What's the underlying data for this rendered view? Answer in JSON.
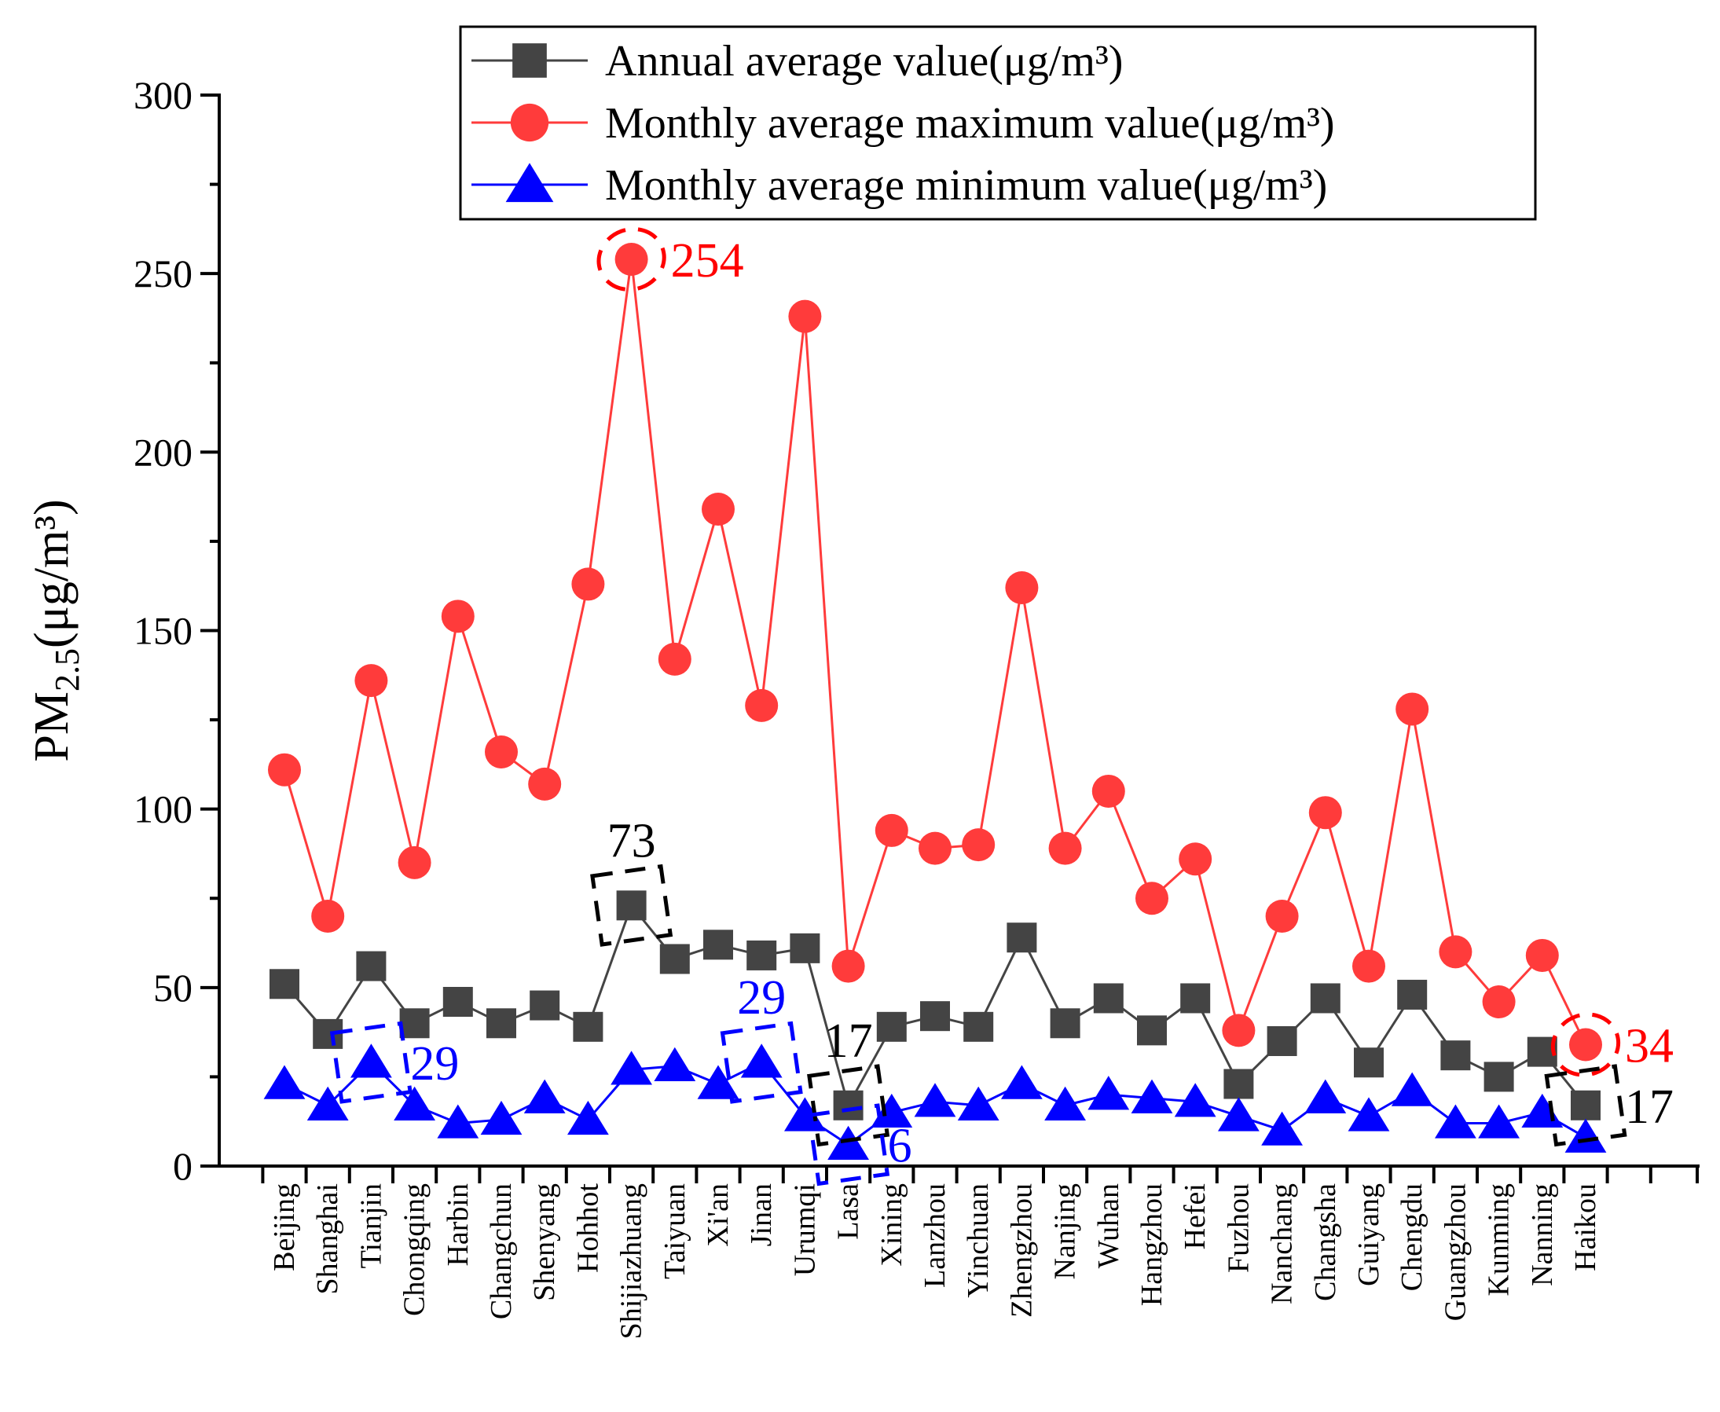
{
  "chart_data": {
    "type": "line",
    "title": "",
    "xlabel": "",
    "ylabel": {
      "main": "PM",
      "sub": "2.5",
      "unit": "(μg/m³)"
    },
    "ylim": [
      0,
      300
    ],
    "yticks": [
      "0",
      "50",
      "100",
      "150",
      "200",
      "250",
      "300"
    ],
    "grid": false,
    "legend_position": "top-right",
    "categories": [
      "Beijing",
      "Shanghai",
      "Tianjin",
      "Chongqing",
      "Harbin",
      "Changchun",
      "Shenyang",
      "Hohhot",
      "Shijiazhuang",
      "Taiyuan",
      "Xi'an",
      "Jinan",
      "Urumqi",
      "Lasa",
      "Xining",
      "Lanzhou",
      "Yinchuan",
      "Zhengzhou",
      "Nanjing",
      "Wuhan",
      "Hangzhou",
      "Hefei",
      "Fuzhou",
      "Nanchang",
      "Changsha",
      "Guiyang",
      "Chengdu",
      "Guangzhou",
      "Kunming",
      "Nanning",
      "Haikou"
    ],
    "series": [
      {
        "name": "Annual average value(μg/m³)",
        "color": "#444444",
        "marker": "square",
        "values": [
          51,
          37,
          56,
          40,
          46,
          40,
          45,
          39,
          73,
          58,
          62,
          59,
          61,
          17,
          39,
          42,
          39,
          64,
          40,
          47,
          38,
          47,
          23,
          35,
          47,
          29,
          48,
          31,
          25,
          32,
          17
        ]
      },
      {
        "name": "Monthly average maximum value(μg/m³)",
        "color": "#ff3b3b",
        "marker": "circle",
        "values": [
          111,
          70,
          136,
          85,
          154,
          116,
          107,
          163,
          254,
          142,
          184,
          129,
          238,
          56,
          94,
          89,
          90,
          162,
          89,
          105,
          75,
          86,
          38,
          70,
          99,
          56,
          128,
          60,
          46,
          59,
          34
        ]
      },
      {
        "name": "Monthly average minimum value(μg/m³)",
        "color": "#0000ff",
        "marker": "triangle",
        "values": [
          23,
          17,
          29,
          17,
          12,
          13,
          19,
          13,
          27,
          28,
          23,
          29,
          14,
          6,
          15,
          18,
          17,
          23,
          17,
          20,
          19,
          18,
          14,
          10,
          19,
          14,
          21,
          12,
          12,
          15,
          8
        ]
      }
    ],
    "annotations": [
      {
        "text": "254",
        "series": 1,
        "index": 8,
        "color": "#ff0000",
        "offset": "right"
      },
      {
        "text": "34",
        "series": 1,
        "index": 30,
        "color": "#ff0000",
        "offset": "right"
      },
      {
        "text": "73",
        "series": 0,
        "index": 8,
        "color": "#000000",
        "offset": "above"
      },
      {
        "text": "17",
        "series": 0,
        "index": 13,
        "color": "#000000",
        "offset": "above"
      },
      {
        "text": "17",
        "series": 0,
        "index": 30,
        "color": "#000000",
        "offset": "right"
      },
      {
        "text": "29",
        "series": 2,
        "index": 2,
        "color": "#0000ff",
        "offset": "right"
      },
      {
        "text": "29",
        "series": 2,
        "index": 11,
        "color": "#0000ff",
        "offset": "above"
      },
      {
        "text": "6",
        "series": 2,
        "index": 13,
        "color": "#0000ff",
        "offset": "right"
      }
    ]
  }
}
